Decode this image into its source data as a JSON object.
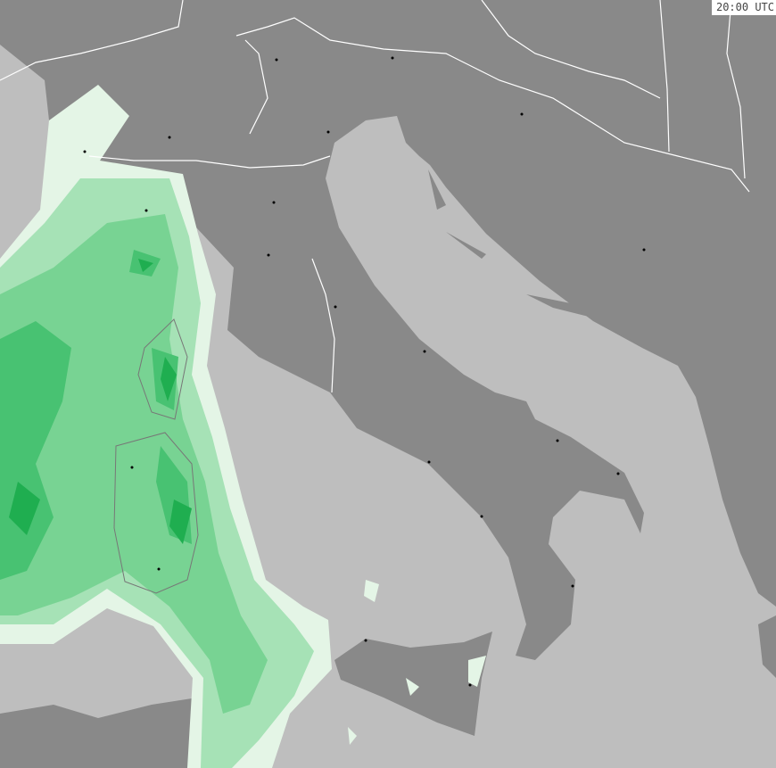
{
  "map": {
    "timestamp": "20:00 UTC",
    "colors": {
      "sea": "#bebebe",
      "land": "#898989",
      "precip_light": "#e4f5e6",
      "precip_1": "#a6e2b6",
      "precip_2": "#78d393",
      "precip_3": "#48c272",
      "precip_4": "#1fae50",
      "borders": "#ffffff"
    }
  }
}
